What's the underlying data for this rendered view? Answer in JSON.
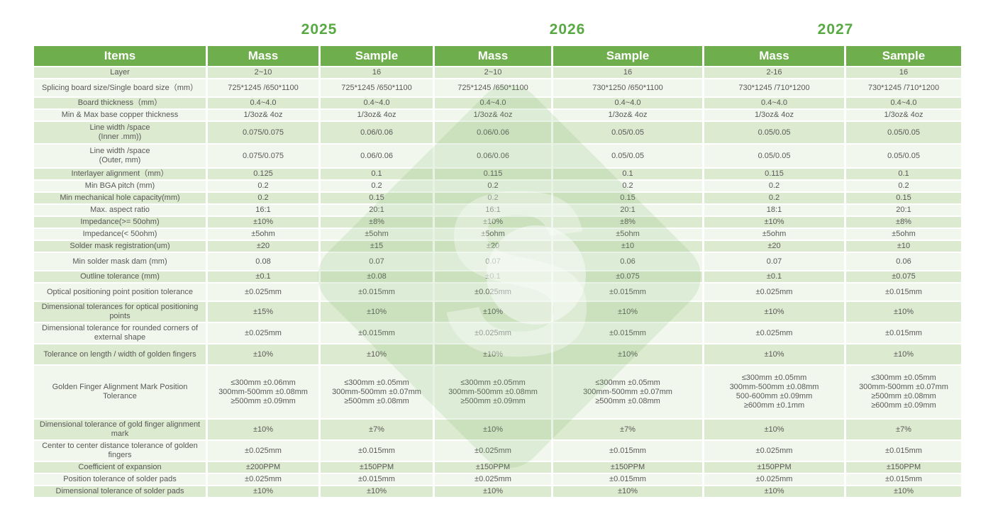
{
  "years": [
    "2025",
    "2026",
    "2027"
  ],
  "table": {
    "items_header": "Items",
    "column_headers": [
      "Mass",
      "Sample",
      "Mass",
      "Sample",
      "Mass",
      "Sample"
    ],
    "rows": [
      {
        "label": "Layer",
        "values": [
          "2~10",
          "16",
          "2~10",
          "16",
          "2-16",
          "16"
        ]
      },
      {
        "label": "Splicing board size/Single  board size（mm）",
        "values": [
          "725*1245 /650*1100",
          "725*1245 /650*1100",
          "725*1245 /650*1100",
          "730*1250 /650*1100",
          "730*1245 /710*1200",
          "730*1245 /710*1200"
        ]
      },
      {
        "label": "Board thickness（mm）",
        "values": [
          "0.4~4.0",
          "0.4~4.0",
          "0.4~4.0",
          "0.4~4.0",
          "0.4~4.0",
          "0.4~4.0"
        ]
      },
      {
        "label": "Min & Max base copper thickness",
        "values": [
          "1/3oz& 4oz",
          "1/3oz& 4oz",
          "1/3oz& 4oz",
          "1/3oz& 4oz",
          "1/3oz& 4oz",
          "1/3oz& 4oz"
        ]
      },
      {
        "label": "Line width /space\n(Inner .mm))",
        "values": [
          "0.075/0.075",
          "0.06/0.06",
          "0.06/0.06",
          "0.05/0.05",
          "0.05/0.05",
          "0.05/0.05"
        ]
      },
      {
        "label": "Line width /space\n(Outer, mm)",
        "values": [
          "0.075/0.075",
          "0.06/0.06",
          "0.06/0.06",
          "0.05/0.05",
          "0.05/0.05",
          "0.05/0.05"
        ]
      },
      {
        "label": "Interlayer alignment（mm）",
        "values": [
          "0.125",
          "0.1",
          "0.115",
          "0.1",
          "0.115",
          "0.1"
        ]
      },
      {
        "label": "Min BGA pitch (mm)",
        "values": [
          "0.2",
          "0.2",
          "0.2",
          "0.2",
          "0.2",
          "0.2"
        ]
      },
      {
        "label": "Min mechanical hole capacity(mm)",
        "values": [
          "0.2",
          "0.15",
          "0.2",
          "0.15",
          "0.2",
          "0.15"
        ]
      },
      {
        "label": "Max. aspect ratio",
        "values": [
          "16:1",
          "20:1",
          "16:1",
          "20:1",
          "18:1",
          "20:1"
        ]
      },
      {
        "label": "Impedance(>= 50ohm)",
        "values": [
          "±10%",
          "±8%",
          "±10%",
          "±8%",
          "±10%",
          "±8%"
        ]
      },
      {
        "label": "Impedance(< 50ohm)",
        "values": [
          "±5ohm",
          "±5ohm",
          "±5ohm",
          "±5ohm",
          "±5ohm",
          "±5ohm"
        ]
      },
      {
        "label": "Solder mask registration(um)",
        "values": [
          "±20",
          "±15",
          "±20",
          "±10",
          "±20",
          "±10"
        ]
      },
      {
        "label": "Min solder mask dam (mm)",
        "values": [
          "0.08",
          "0.07",
          "0.07",
          "0.06",
          "0.07",
          "0.06"
        ]
      },
      {
        "label": "Outline tolerance (mm)",
        "values": [
          "±0.1",
          "±0.08",
          "±0.1",
          "±0.075",
          "±0.1",
          "±0.075"
        ]
      },
      {
        "label": "Optical positioning point position tolerance",
        "values": [
          "±0.025mm",
          "±0.015mm",
          "±0.025mm",
          "±0.015mm",
          "±0.025mm",
          "±0.015mm"
        ]
      },
      {
        "label": "Dimensional tolerances for optical positioning points",
        "values": [
          "±15%",
          "±10%",
          "±10%",
          "±10%",
          "±10%",
          "±10%"
        ]
      },
      {
        "label": "Dimensional tolerance for rounded corners of external shape",
        "values": [
          "±0.025mm",
          "±0.015mm",
          "±0.025mm",
          "±0.015mm",
          "±0.025mm",
          "±0.015mm"
        ]
      },
      {
        "label": "Tolerance on length / width of golden fingers",
        "values": [
          "±10%",
          "±10%",
          "±10%",
          "±10%",
          "±10%",
          "±10%"
        ]
      },
      {
        "label": "Golden Finger Alignment Mark Position Tolerance",
        "values": [
          "≤300mm   ±0.06mm\n300mm-500mm  ±0.08mm\n≥500mm   ±0.09mm",
          "≤300mm   ±0.05mm\n300mm-500mm  ±0.07mm\n≥500mm   ±0.08mm",
          "≤300mm   ±0.05mm\n300mm-500mm  ±0.08mm\n≥500mm   ±0.09mm",
          "≤300mm   ±0.05mm\n300mm-500mm  ±0.07mm\n≥500mm   ±0.08mm",
          "≤300mm   ±0.05mm\n300mm-500mm  ±0.08mm\n500-600mm   ±0.09mm\n≥600mm   ±0.1mm",
          "≤300mm   ±0.05mm\n300mm-500mm  ±0.07mm\n≥500mm   ±0.08mm\n≥600mm   ±0.09mm"
        ]
      },
      {
        "label": "Dimensional tolerance of gold finger alignment mark",
        "values": [
          "±10%",
          "±7%",
          "±10%",
          "±7%",
          "±10%",
          "±7%"
        ]
      },
      {
        "label": "Center to center distance tolerance of golden fingers",
        "values": [
          "±0.025mm",
          "±0.015mm",
          "±0.025mm",
          "±0.015mm",
          "±0.025mm",
          "±0.015mm"
        ]
      },
      {
        "label": "Coefficient of expansion",
        "values": [
          "±200PPM",
          "±150PPM",
          "±150PPM",
          "±150PPM",
          "±150PPM",
          "±150PPM"
        ]
      },
      {
        "label": "Position tolerance of solder pads",
        "values": [
          "±0.025mm",
          "±0.015mm",
          "±0.025mm",
          "±0.015mm",
          "±0.025mm",
          "±0.015mm"
        ]
      },
      {
        "label": "Dimensional tolerance of solder pads",
        "values": [
          "±10%",
          "±10%",
          "±10%",
          "±10%",
          "±10%",
          "±10%"
        ]
      }
    ]
  },
  "colors": {
    "header_bg": "#6fae4c",
    "year_text": "#58a944",
    "row_green_tint": "#dcead0",
    "row_light_tint": "#f2f7ee",
    "cell_text": "#595757",
    "watermark_green": "#79b963"
  }
}
